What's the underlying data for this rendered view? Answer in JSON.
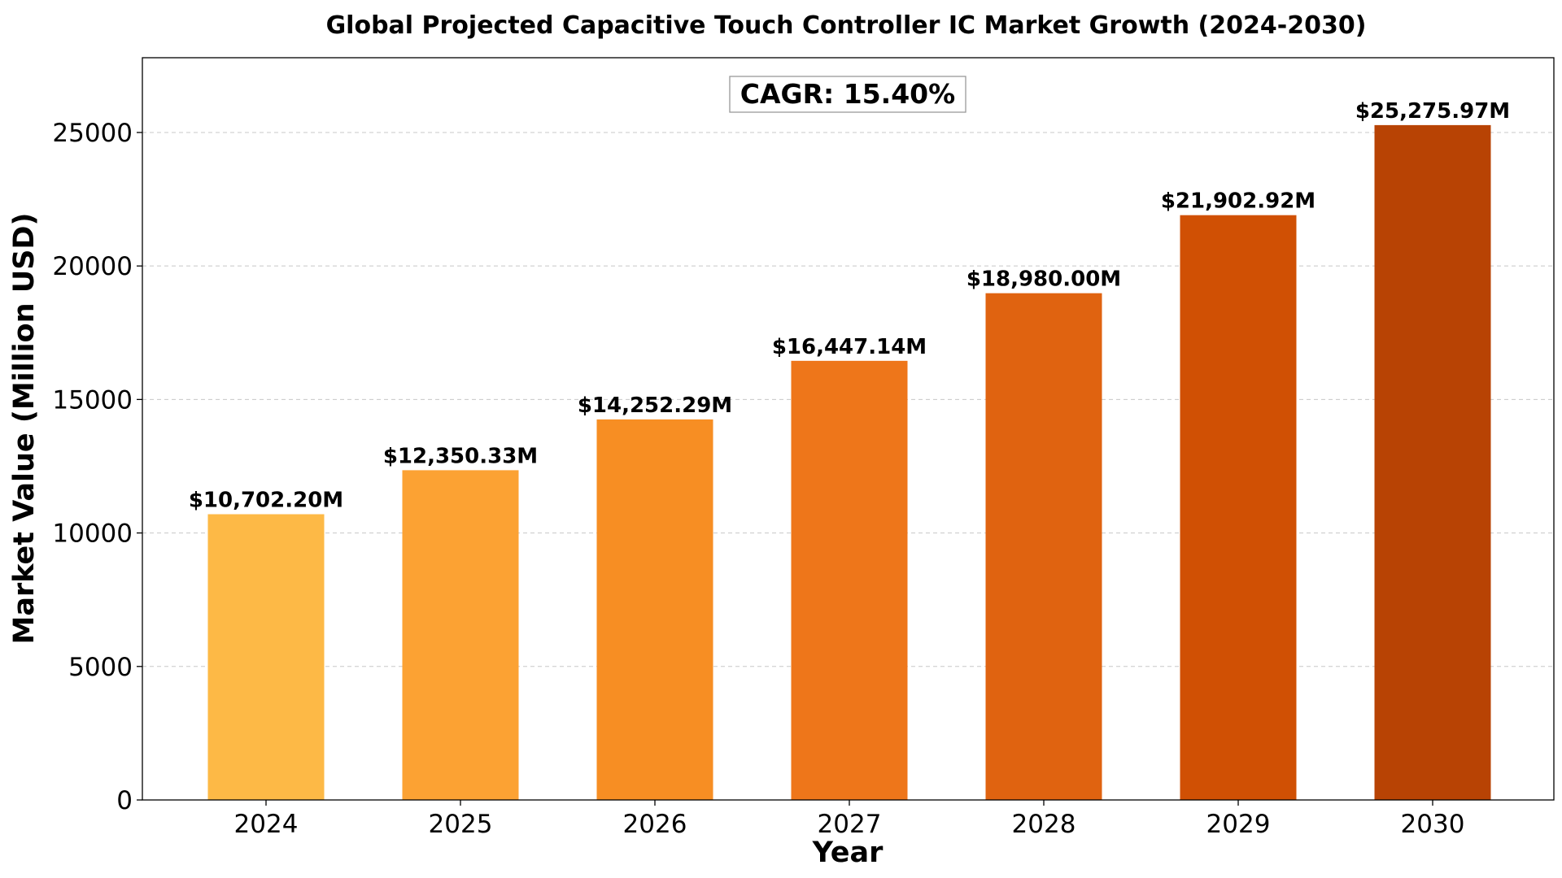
{
  "chart_data": {
    "type": "bar",
    "title": "Global Projected Capacitive Touch Controller IC Market Growth (2024-2030)",
    "xlabel": "Year",
    "ylabel": "Market Value (Million USD)",
    "categories": [
      "2024",
      "2025",
      "2026",
      "2027",
      "2028",
      "2029",
      "2030"
    ],
    "values": [
      10702.2,
      12350.33,
      14252.29,
      16447.14,
      18980.0,
      21902.92,
      25275.97
    ],
    "data_labels": [
      "$10,702.20M",
      "$12,350.33M",
      "$14,252.29M",
      "$16,447.14M",
      "$18,980.00M",
      "$21,902.92M",
      "$25,275.97M"
    ],
    "bar_colors": [
      "#fdb946",
      "#fca233",
      "#f78e23",
      "#ee761a",
      "#e06310",
      "#d05004",
      "#b84304"
    ],
    "ylim": [
      0,
      27800
    ],
    "yticks": [
      0,
      5000,
      10000,
      15000,
      20000,
      25000
    ],
    "ytick_labels": [
      "0",
      "5000",
      "10000",
      "15000",
      "20000",
      "25000"
    ],
    "grid": true,
    "annotation": "CAGR: 15.40%"
  }
}
